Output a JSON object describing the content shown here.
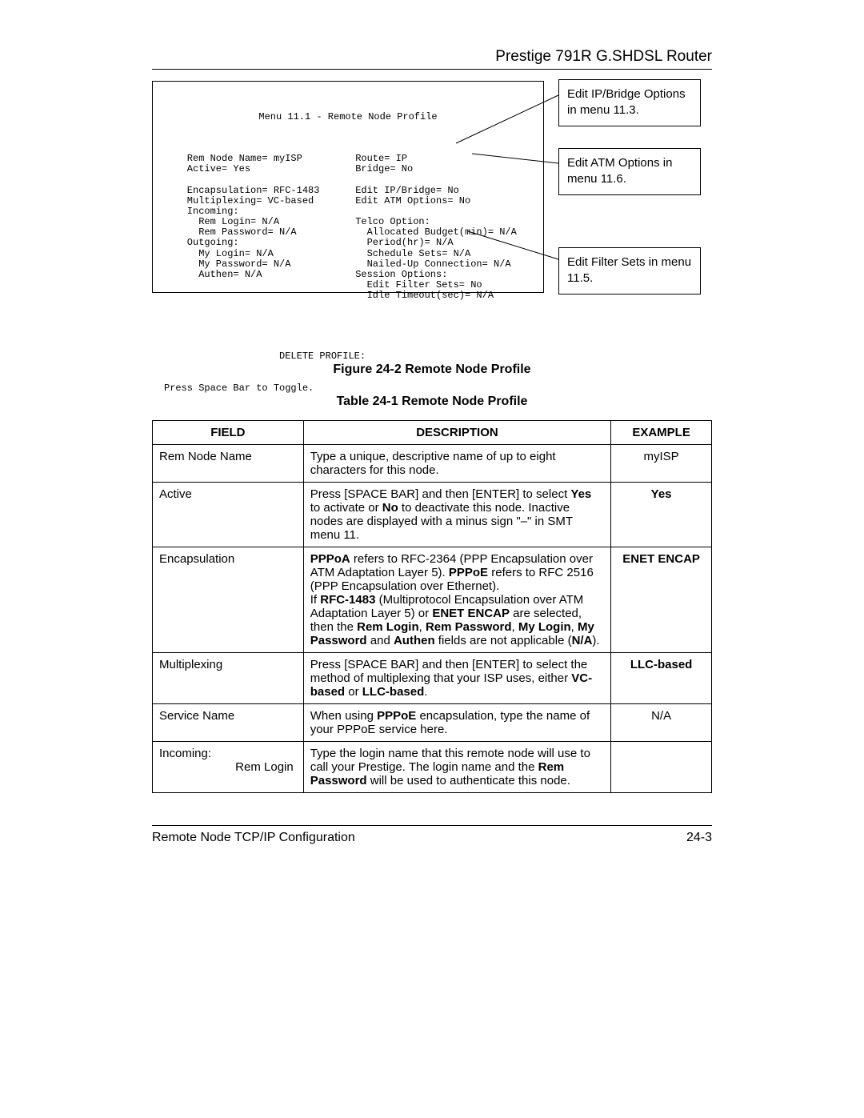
{
  "header": {
    "title": "Prestige 791R G.SHDSL Router"
  },
  "terminal": {
    "title": "Menu 11.1 - Remote Node Profile",
    "col1": "    Rem Node Name= myISP\n    Active= Yes\n\n    Encapsulation= RFC-1483\n    Multiplexing= VC-based\n    Incoming:\n      Rem Login= N/A\n      Rem Password= N/A\n    Outgoing:\n      My Login= N/A\n      My Password= N/A\n      Authen= N/A",
    "col2": "Route= IP\nBridge= No\n\nEdit IP/Bridge= No\nEdit ATM Options= No\n\nTelco Option:\n  Allocated Budget(min)= N/A\n  Period(hr)= N/A\n  Schedule Sets= N/A\n  Nailed-Up Connection= N/A\nSession Options:\n  Edit Filter Sets= No\n  Idle Timeout(sec)= N/A",
    "delete_line": "                    DELETE PROFILE:",
    "footer_line": "Press Space Bar to Toggle."
  },
  "callouts": {
    "c1": "Edit IP/Bridge Options in menu 11.3.",
    "c2": "Edit ATM Options in menu 11.6.",
    "c3": "Edit Filter Sets in menu 11.5."
  },
  "captions": {
    "figure": "Figure 24-2 Remote Node Profile",
    "table": "Table 24-1 Remote Node Profile"
  },
  "table": {
    "headers": {
      "field": "FIELD",
      "description": "DESCRIPTION",
      "example": "EXAMPLE"
    },
    "rows": [
      {
        "field": "Rem Node Name",
        "desc_html": "Type a unique, descriptive name of up to eight characters for this node.",
        "example_html": "myISP"
      },
      {
        "field": "Active",
        "desc_html": "Press [SPACE BAR] and then [ENTER] to select <b>Yes</b> to activate or <b>No</b> to deactivate this node. Inactive nodes are displayed with a minus sign \"–\" in SMT menu 11.",
        "example_html": "<b>Yes</b>"
      },
      {
        "field": "Encapsulation",
        "desc_html": "<b>PPPoA</b> refers to RFC-2364 (PPP Encapsulation over ATM Adaptation Layer 5). <b>PPPoE</b> refers to RFC 2516 (PPP Encapsulation over Ethernet).<br>If <b>RFC-1483</b> (Multiprotocol Encapsulation over ATM Adaptation Layer 5) or <b>ENET ENCAP</b> are selected, then the <b>Rem Login</b>, <b>Rem Password</b>, <b>My Login</b>, <b>My Password</b> and <b>Authen</b> fields are not applicable (<b>N/A</b>).",
        "example_html": "<b>ENET ENCAP</b>"
      },
      {
        "field": "Multiplexing",
        "desc_html": "Press [SPACE BAR] and then [ENTER] to select the method of multiplexing that your ISP uses, either <b>VC-based</b> or <b>LLC-based</b>.",
        "example_html": "<b>LLC-based</b>"
      },
      {
        "field": "Service Name",
        "desc_html": "When using <b>PPPoE</b> encapsulation, type the name of your PPPoE service here.",
        "example_html": "N/A"
      },
      {
        "field_html": "Incoming:<span class=\"sub-right\">Rem Login</span>",
        "desc_html": "Type the login name that this remote node will use to call your Prestige. The login name and the <b>Rem Password</b> will be used to authenticate this node.",
        "example_html": ""
      }
    ]
  },
  "footer": {
    "left": "Remote Node TCP/IP Configuration",
    "right": "24-3"
  },
  "colors": {
    "text": "#000000",
    "background": "#ffffff",
    "border": "#000000"
  }
}
